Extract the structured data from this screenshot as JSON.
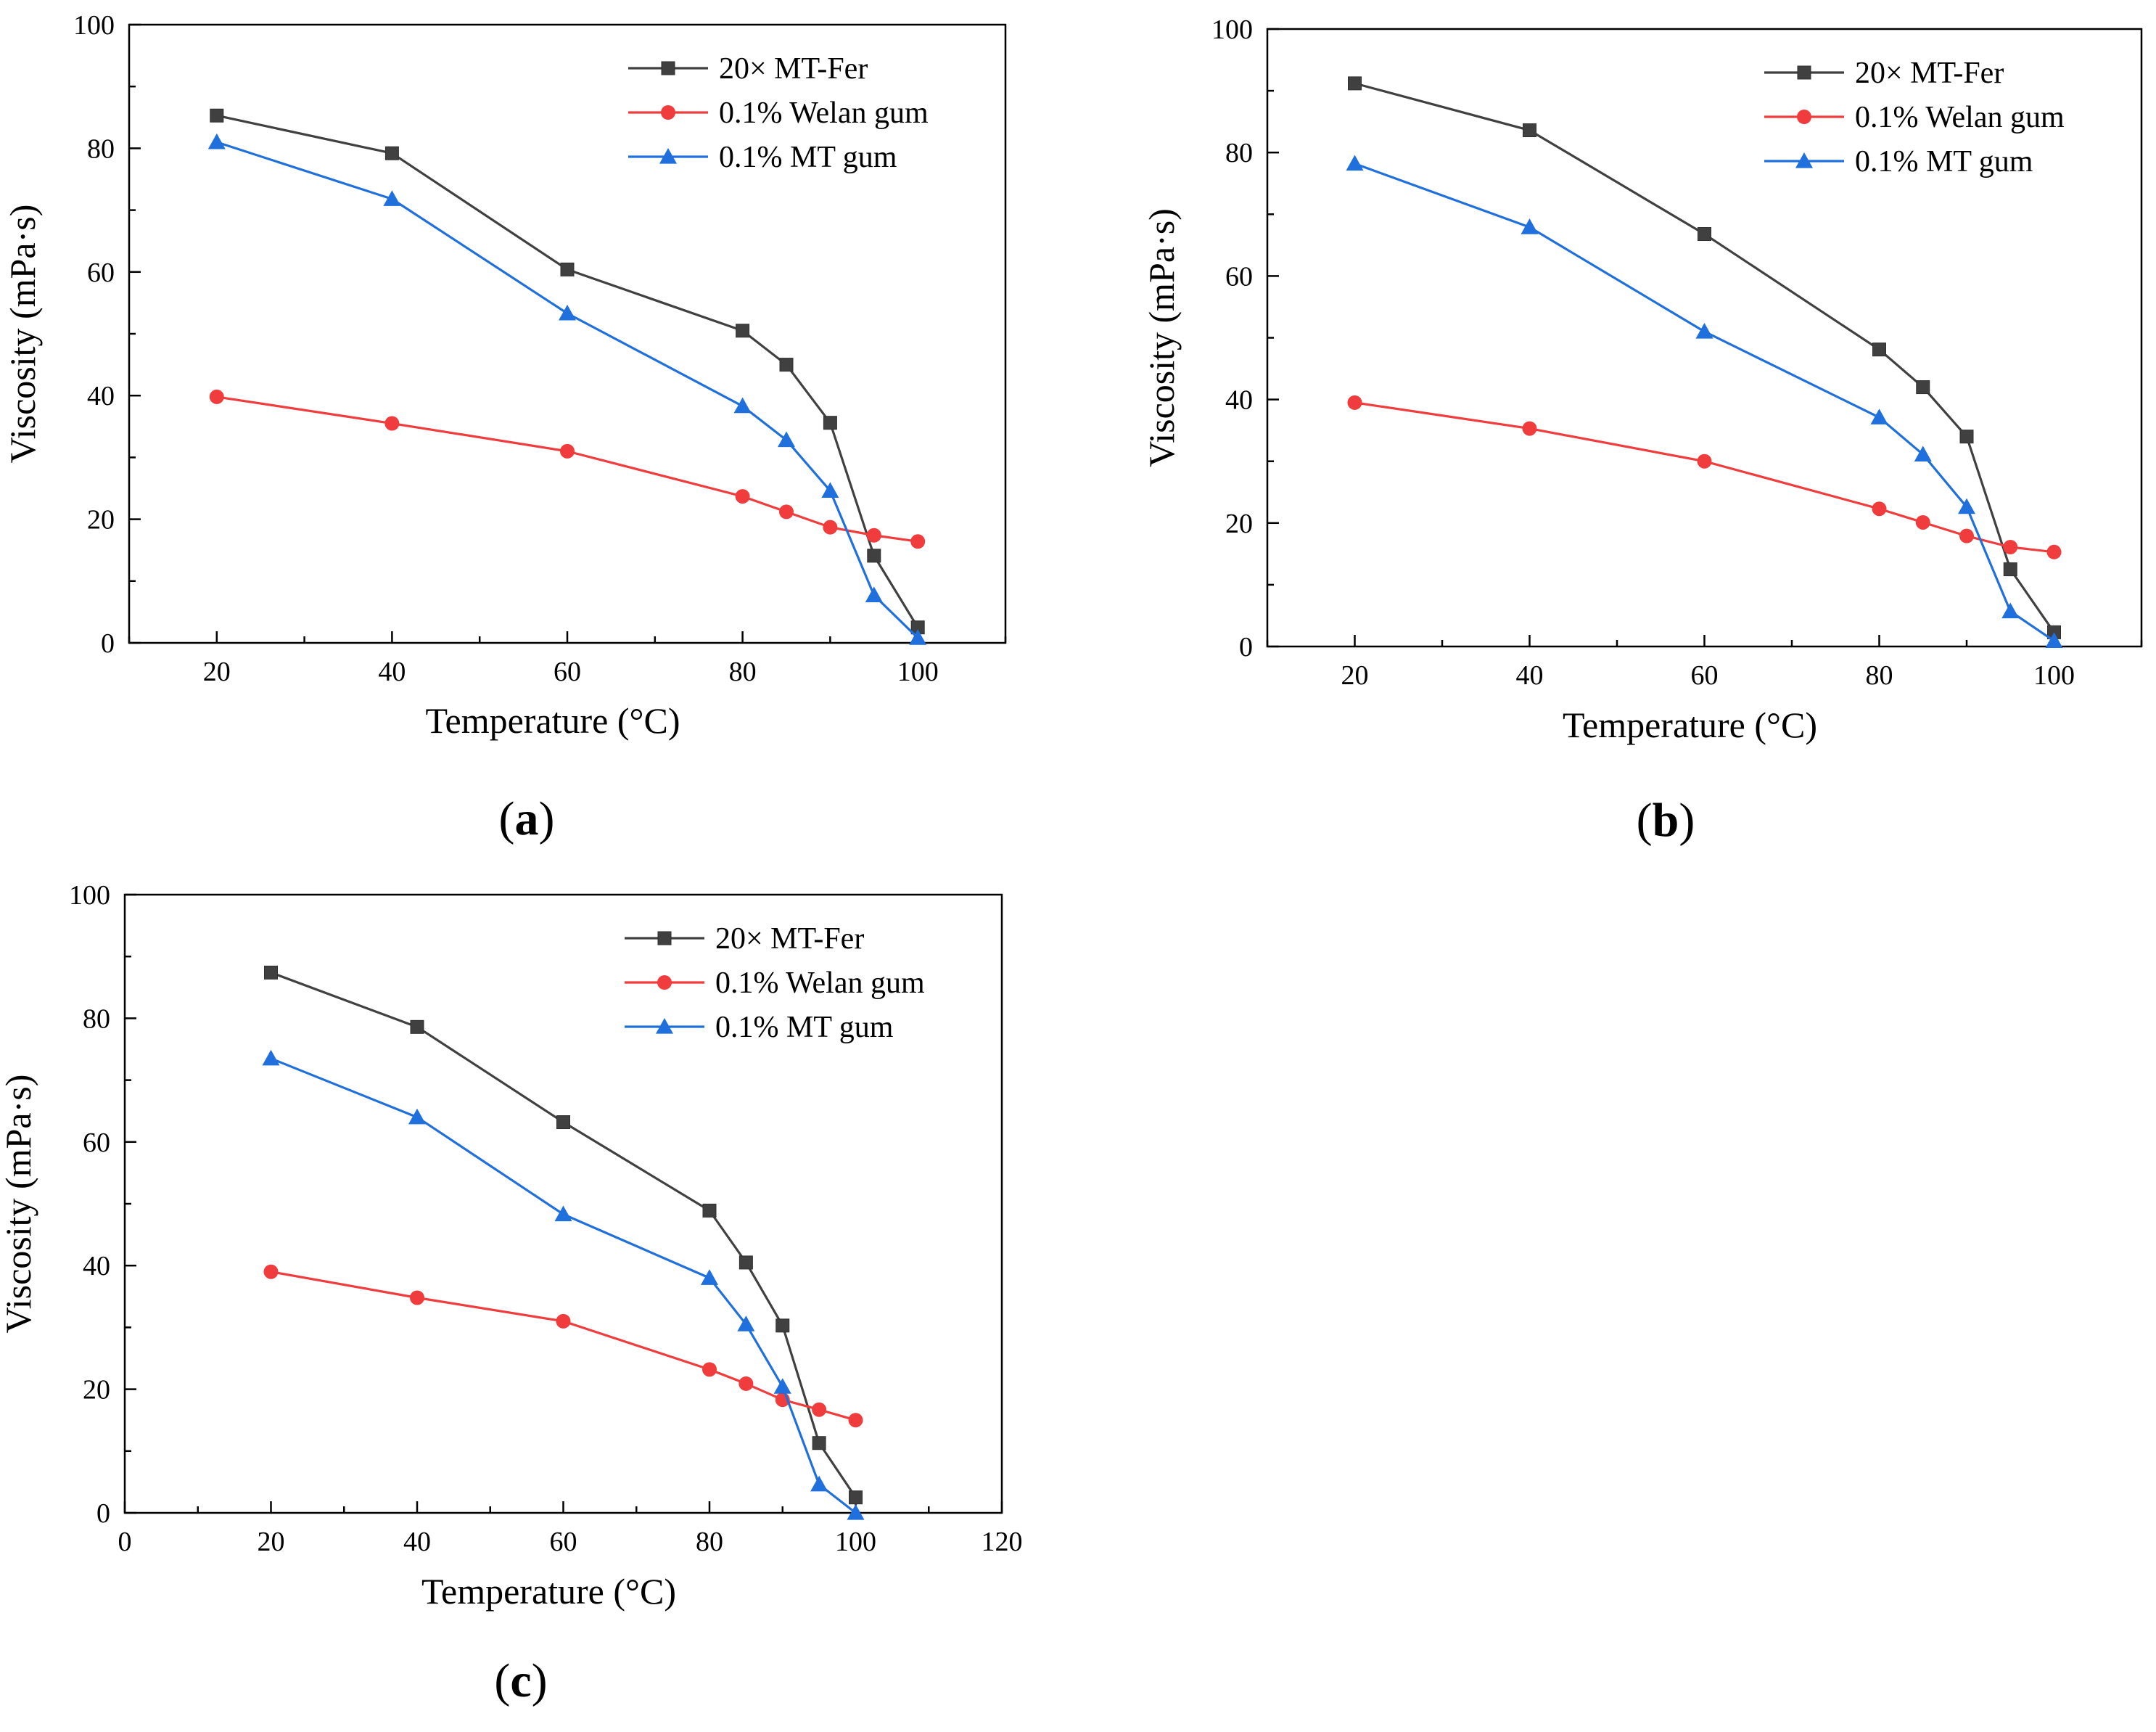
{
  "chart_data": [
    {
      "type": "line",
      "panel_label": "(a)",
      "panel_letter": "a",
      "xlabel": "Temperature (°C)",
      "ylabel": "Viscosity (mPa·s)",
      "xlim": [
        10,
        110
      ],
      "ylim": [
        0,
        100
      ],
      "xticks": [
        20,
        40,
        60,
        80,
        100
      ],
      "yticks": [
        0,
        20,
        40,
        60,
        80,
        100
      ],
      "grid": false,
      "legend_position": "top-right",
      "series": [
        {
          "name": "20× MT-Fer",
          "color": "#404040",
          "marker": "square",
          "x": [
            20,
            40,
            60,
            80,
            85,
            90,
            95,
            100
          ],
          "values": [
            85.3,
            79.2,
            60.4,
            50.5,
            45.0,
            35.6,
            14.1,
            2.5
          ]
        },
        {
          "name": "0.1% Welan gum",
          "color": "#f03c3c",
          "marker": "circle",
          "x": [
            20,
            40,
            60,
            80,
            85,
            90,
            95,
            100
          ],
          "values": [
            39.8,
            35.5,
            31.0,
            23.7,
            21.2,
            18.7,
            17.4,
            16.4
          ]
        },
        {
          "name": "0.1% MT gum",
          "color": "#1f6fdc",
          "marker": "triangle",
          "x": [
            20,
            40,
            60,
            80,
            85,
            90,
            95,
            100
          ],
          "values": [
            81.0,
            71.8,
            53.3,
            38.3,
            32.8,
            24.6,
            7.7,
            0.8
          ]
        }
      ]
    },
    {
      "type": "line",
      "panel_label": "(b)",
      "panel_letter": "b",
      "xlabel": "Temperature (°C)",
      "ylabel": "Viscosity (mPa·s)",
      "xlim": [
        10,
        110
      ],
      "ylim": [
        0,
        100
      ],
      "xticks": [
        20,
        40,
        60,
        80,
        100
      ],
      "yticks": [
        0,
        20,
        40,
        60,
        80,
        100
      ],
      "grid": false,
      "legend_position": "top-right",
      "series": [
        {
          "name": "20× MT-Fer",
          "color": "#404040",
          "marker": "square",
          "x": [
            20,
            40,
            60,
            80,
            85,
            90,
            95,
            100
          ],
          "values": [
            91.2,
            83.6,
            66.8,
            48.1,
            42.0,
            34.0,
            12.5,
            2.3
          ]
        },
        {
          "name": "0.1% Welan gum",
          "color": "#f03c3c",
          "marker": "circle",
          "x": [
            20,
            40,
            60,
            80,
            85,
            90,
            95,
            100
          ],
          "values": [
            39.5,
            35.3,
            30.0,
            22.3,
            20.1,
            17.9,
            16.1,
            15.3
          ]
        },
        {
          "name": "0.1% MT gum",
          "color": "#1f6fdc",
          "marker": "triangle",
          "x": [
            20,
            40,
            60,
            80,
            85,
            90,
            95,
            100
          ],
          "values": [
            78.2,
            67.9,
            51.0,
            37.1,
            31.1,
            22.6,
            5.7,
            0.9
          ]
        }
      ]
    },
    {
      "type": "line",
      "panel_label": "(c)",
      "panel_letter": "c",
      "xlabel": "Temperature (°C)",
      "ylabel": "Viscosity (mPa·s)",
      "xlim": [
        0,
        120
      ],
      "ylim": [
        0,
        100
      ],
      "xticks": [
        0,
        20,
        40,
        60,
        80,
        100,
        120
      ],
      "yticks": [
        0,
        20,
        40,
        60,
        80,
        100
      ],
      "grid": false,
      "legend_position": "top-right",
      "series": [
        {
          "name": "20× MT-Fer",
          "color": "#404040",
          "marker": "square",
          "x": [
            20,
            40,
            60,
            80,
            85,
            90,
            95,
            100
          ],
          "values": [
            87.4,
            78.6,
            63.2,
            48.9,
            40.5,
            30.3,
            11.3,
            2.5
          ]
        },
        {
          "name": "0.1% Welan gum",
          "color": "#f03c3c",
          "marker": "circle",
          "x": [
            20,
            40,
            60,
            80,
            85,
            90,
            95,
            100
          ],
          "values": [
            39.0,
            34.8,
            31.0,
            23.2,
            20.9,
            18.3,
            16.7,
            15.0
          ]
        },
        {
          "name": "0.1% MT gum",
          "color": "#1f6fdc",
          "marker": "triangle",
          "x": [
            20,
            40,
            60,
            80,
            85,
            90,
            95,
            100
          ],
          "values": [
            73.5,
            64.0,
            48.3,
            38.0,
            30.5,
            20.4,
            4.6,
            0.0
          ]
        }
      ]
    }
  ]
}
